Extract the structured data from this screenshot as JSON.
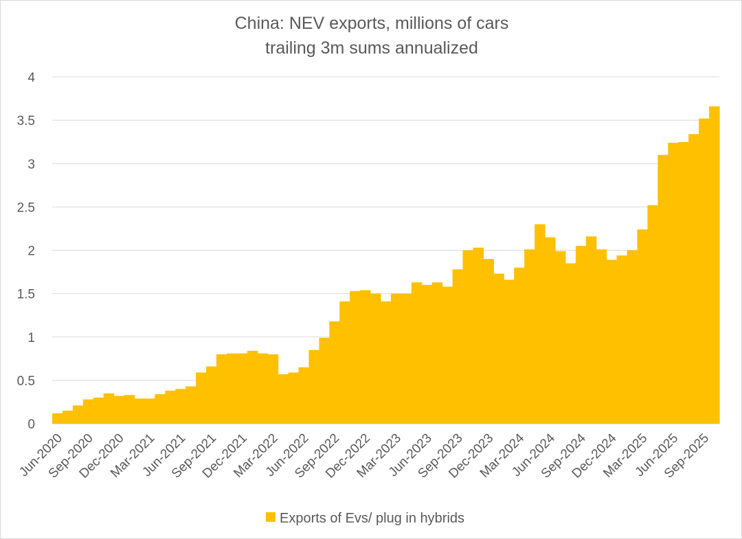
{
  "chart_data": {
    "type": "area",
    "title": "China: NEV exports, millions of cars",
    "subtitle": "trailing 3m sums annualized",
    "xlabel": "",
    "ylabel": "",
    "ylim": [
      0,
      4
    ],
    "yticks": [
      "0",
      "0.5",
      "1",
      "1.5",
      "2",
      "2.5",
      "3",
      "3.5",
      "4"
    ],
    "ytick_values": [
      0,
      0.5,
      1,
      1.5,
      2,
      2.5,
      3,
      3.5,
      4
    ],
    "x_tick_labels": [
      "Jun-2020",
      "Sep-2020",
      "Dec-2020",
      "Mar-2021",
      "Jun-2021",
      "Sep-2021",
      "Dec-2021",
      "Mar-2022",
      "Jun-2022",
      "Sep-2022",
      "Dec-2022",
      "Mar-2023",
      "Jun-2023",
      "Sep-2023",
      "Dec-2023",
      "Mar-2024",
      "Jun-2024",
      "Sep-2024",
      "Dec-2024",
      "Mar-2025",
      "Jun-2025",
      "Sep-2025"
    ],
    "x_tick_every": 3,
    "grid": true,
    "legend_position": "bottom",
    "color": "#FFC000",
    "series": [
      {
        "name": "Exports of Evs/ plug in hybrids",
        "x": [
          "Jun-2020",
          "Jul-2020",
          "Aug-2020",
          "Sep-2020",
          "Oct-2020",
          "Nov-2020",
          "Dec-2020",
          "Jan-2021",
          "Feb-2021",
          "Mar-2021",
          "Apr-2021",
          "May-2021",
          "Jun-2021",
          "Jul-2021",
          "Aug-2021",
          "Sep-2021",
          "Oct-2021",
          "Nov-2021",
          "Dec-2021",
          "Jan-2022",
          "Feb-2022",
          "Mar-2022",
          "Apr-2022",
          "May-2022",
          "Jun-2022",
          "Jul-2022",
          "Aug-2022",
          "Sep-2022",
          "Oct-2022",
          "Nov-2022",
          "Dec-2022",
          "Jan-2023",
          "Feb-2023",
          "Mar-2023",
          "Apr-2023",
          "May-2023",
          "Jun-2023",
          "Jul-2023",
          "Aug-2023",
          "Sep-2023",
          "Oct-2023",
          "Nov-2023",
          "Dec-2023",
          "Jan-2024",
          "Feb-2024",
          "Mar-2024",
          "Apr-2024",
          "May-2024",
          "Jun-2024",
          "Jul-2024",
          "Aug-2024",
          "Sep-2024",
          "Oct-2024",
          "Nov-2024",
          "Dec-2024",
          "Jan-2025",
          "Feb-2025",
          "Mar-2025",
          "Apr-2025",
          "May-2025",
          "Jun-2025",
          "Jul-2025",
          "Aug-2025",
          "Sep-2025",
          "Oct-2025"
        ],
        "values": [
          0.12,
          0.15,
          0.21,
          0.28,
          0.3,
          0.35,
          0.32,
          0.33,
          0.29,
          0.29,
          0.34,
          0.38,
          0.4,
          0.43,
          0.59,
          0.66,
          0.8,
          0.81,
          0.81,
          0.84,
          0.81,
          0.8,
          0.57,
          0.59,
          0.65,
          0.85,
          0.99,
          1.18,
          1.41,
          1.53,
          1.54,
          1.5,
          1.41,
          1.5,
          1.5,
          1.63,
          1.6,
          1.63,
          1.58,
          1.78,
          2.0,
          2.03,
          1.9,
          1.73,
          1.66,
          1.8,
          2.01,
          2.3,
          2.15,
          1.99,
          1.85,
          2.05,
          2.16,
          2.01,
          1.89,
          1.94,
          2.0,
          2.24,
          2.52,
          3.1,
          3.24,
          3.25,
          3.34,
          3.52,
          3.66
        ]
      }
    ]
  }
}
